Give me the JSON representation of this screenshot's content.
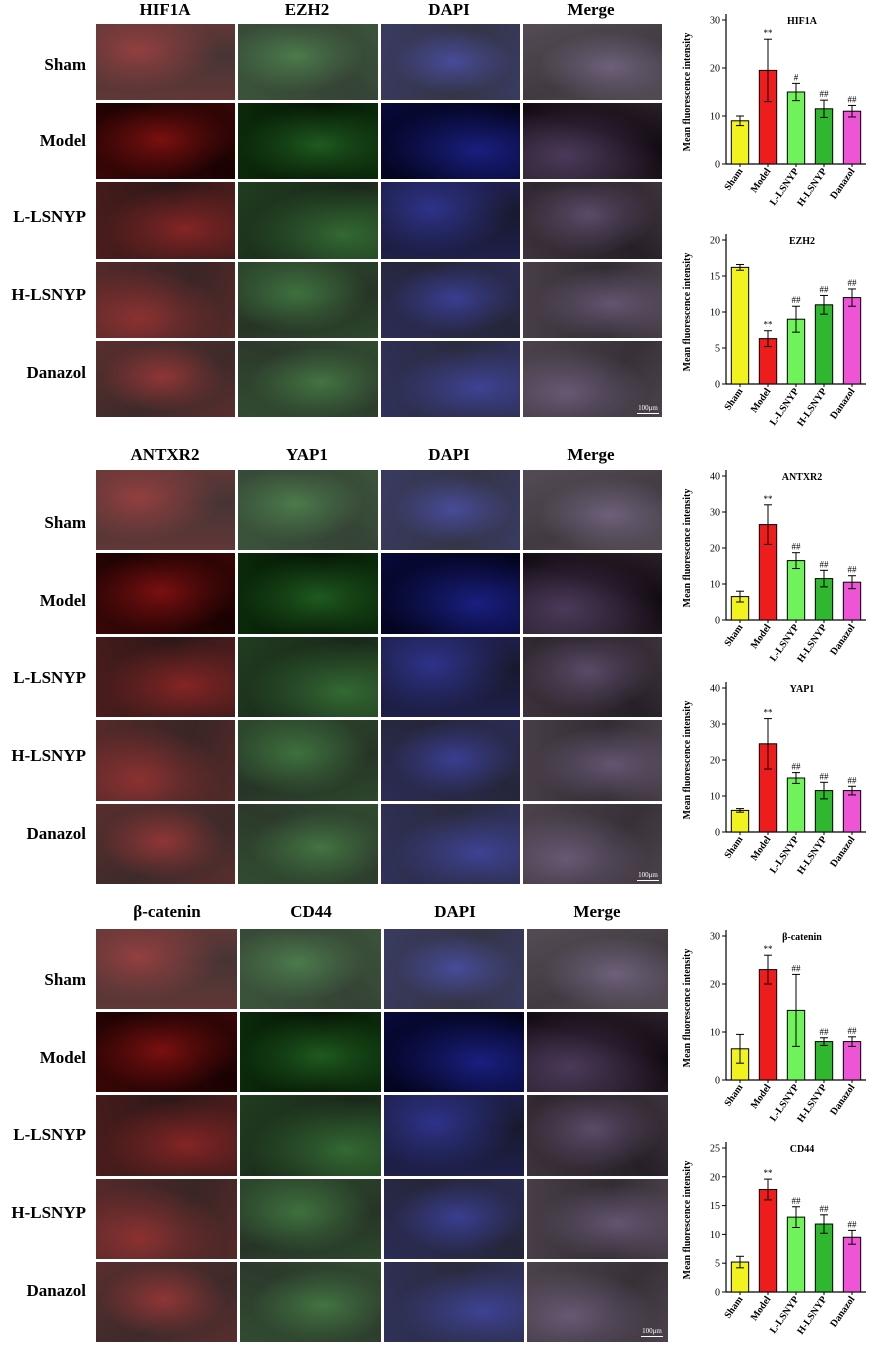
{
  "groups": [
    "Sham",
    "Model",
    "L-LSNYP",
    "H-LSNYP",
    "Danazol"
  ],
  "colors": {
    "Sham": "#f2f21f",
    "Model": "#ee1c1c",
    "L-LSNYP": "#6ff25a",
    "H-LSNYP": "#2fb82f",
    "Danazol": "#ee55d6"
  },
  "panels": [
    {
      "columns": [
        "HIF1A",
        "EZH2",
        "DAPI",
        "Merge"
      ],
      "scale_bar": "100μm"
    },
    {
      "columns": [
        "ANTXR2",
        "YAP1",
        "DAPI",
        "Merge"
      ],
      "scale_bar": "100μm"
    },
    {
      "columns": [
        "β-catenin",
        "CD44",
        "DAPI",
        "Merge"
      ],
      "scale_bar": "100μm"
    }
  ],
  "chart_data": [
    {
      "type": "bar",
      "title": "HIF1A",
      "ylabel": "Mean fluorescence intensity",
      "categories": [
        "Sham",
        "Model",
        "L-LSNYP",
        "H-LSNYP",
        "Danazol"
      ],
      "values": [
        9,
        19.5,
        15,
        11.5,
        11
      ],
      "errors": [
        1,
        6.5,
        1.8,
        1.8,
        1.2
      ],
      "marks": [
        "",
        "**",
        "#",
        "##",
        "##"
      ],
      "ylim": [
        0,
        30
      ],
      "yticks": [
        0,
        10,
        20,
        30
      ]
    },
    {
      "type": "bar",
      "title": "EZH2",
      "ylabel": "Mean fluorescence intensity",
      "categories": [
        "Sham",
        "Model",
        "L-LSNYP",
        "H-LSNYP",
        "Danazol"
      ],
      "values": [
        16.2,
        6.3,
        9,
        11,
        12
      ],
      "errors": [
        0.4,
        1.1,
        1.8,
        1.3,
        1.2
      ],
      "marks": [
        "",
        "**",
        "##",
        "##",
        "##"
      ],
      "ylim": [
        0,
        20
      ],
      "yticks": [
        0,
        5,
        10,
        15,
        20
      ]
    },
    {
      "type": "bar",
      "title": "ANTXR2",
      "ylabel": "Mean fluorescence intensity",
      "categories": [
        "Sham",
        "Model",
        "L-LSNYP",
        "H-LSNYP",
        "Danazol"
      ],
      "values": [
        6.5,
        26.5,
        16.5,
        11.5,
        10.5
      ],
      "errors": [
        1.5,
        5.5,
        2.2,
        2.3,
        1.8
      ],
      "marks": [
        "",
        "**",
        "##",
        "##",
        "##"
      ],
      "ylim": [
        0,
        40
      ],
      "yticks": [
        0,
        10,
        20,
        30,
        40
      ]
    },
    {
      "type": "bar",
      "title": "YAP1",
      "ylabel": "Mean fluorescence intensity",
      "categories": [
        "Sham",
        "Model",
        "L-LSNYP",
        "H-LSNYP",
        "Danazol"
      ],
      "values": [
        6,
        24.5,
        15,
        11.5,
        11.5
      ],
      "errors": [
        0.5,
        7,
        1.5,
        2.3,
        1.2
      ],
      "marks": [
        "",
        "**",
        "##",
        "##",
        "##"
      ],
      "ylim": [
        0,
        40
      ],
      "yticks": [
        0,
        10,
        20,
        30,
        40
      ]
    },
    {
      "type": "bar",
      "title": "β-catenin",
      "ylabel": "Mean fluorescence intensity",
      "categories": [
        "Sham",
        "Model",
        "L-LSNYP",
        "H-LSNYP",
        "Danazol"
      ],
      "values": [
        6.5,
        23,
        14.5,
        8,
        8
      ],
      "errors": [
        3,
        3,
        7.5,
        0.8,
        1
      ],
      "marks": [
        "",
        "**",
        "##",
        "##",
        "##"
      ],
      "ylim": [
        0,
        30
      ],
      "yticks": [
        0,
        10,
        20,
        30
      ]
    },
    {
      "type": "bar",
      "title": "CD44",
      "ylabel": "Mean fluorescence intensity",
      "categories": [
        "Sham",
        "Model",
        "L-LSNYP",
        "H-LSNYP",
        "Danazol"
      ],
      "values": [
        5.2,
        17.8,
        13,
        11.8,
        9.5
      ],
      "errors": [
        1,
        1.8,
        1.8,
        1.6,
        1.2
      ],
      "marks": [
        "",
        "**",
        "##",
        "##",
        "##"
      ],
      "ylim": [
        0,
        25
      ],
      "yticks": [
        0,
        5,
        10,
        15,
        20,
        25
      ]
    }
  ]
}
